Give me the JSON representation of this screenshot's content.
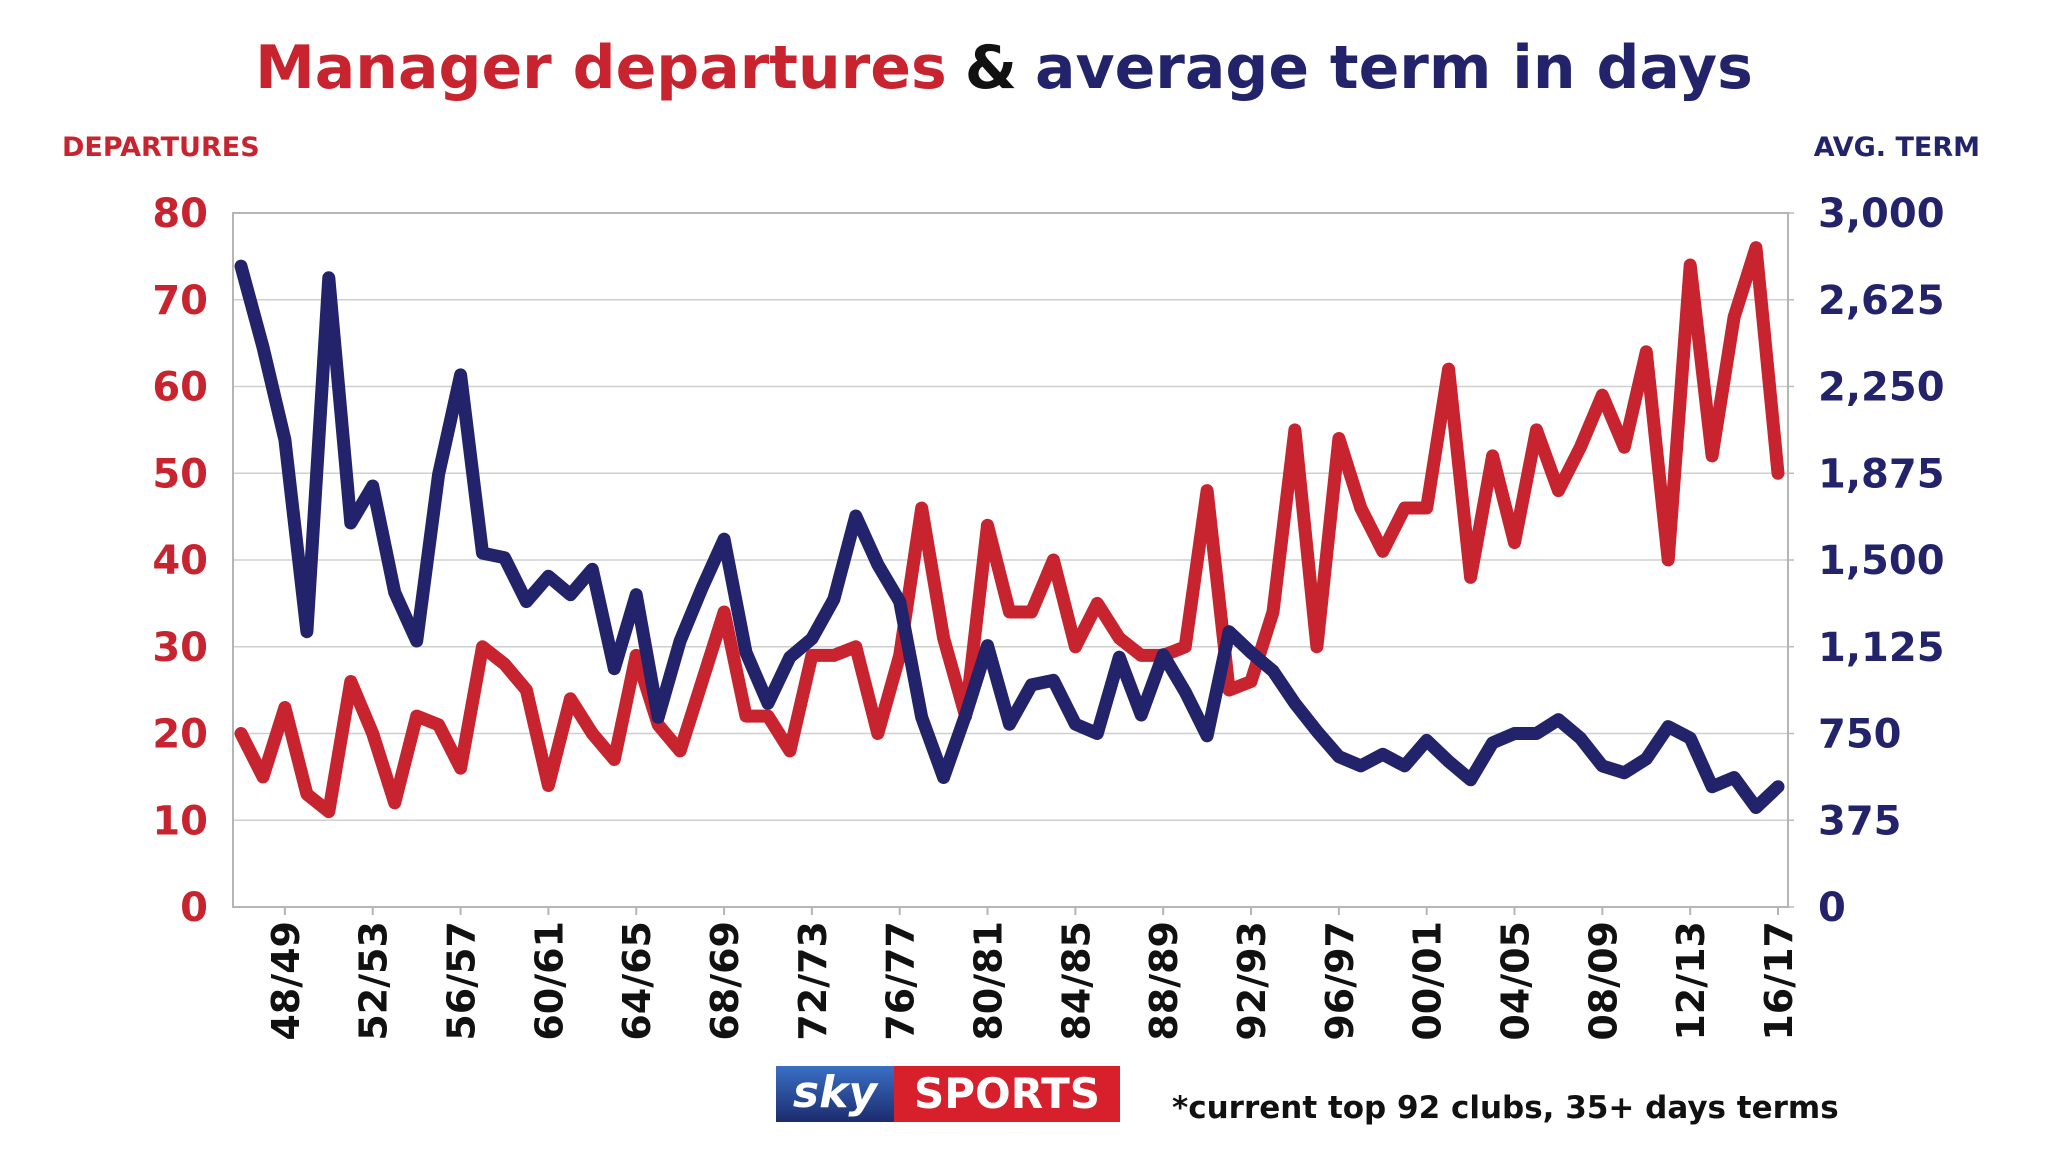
{
  "chart_data": {
    "type": "line",
    "title": [
      {
        "text": "Manager departures",
        "color": "#c8242f"
      },
      {
        "text": "&",
        "color": "#111111"
      },
      {
        "text": "average term in days",
        "color": "#23236b"
      }
    ],
    "ylabel": "DEPARTURES",
    "y2label": "AVG. TERM",
    "categories": [
      null,
      null,
      "48/49",
      null,
      null,
      null,
      "52/53",
      null,
      null,
      null,
      "56/57",
      null,
      null,
      null,
      "60/61",
      null,
      null,
      null,
      "64/65",
      null,
      null,
      null,
      "68/69",
      null,
      null,
      null,
      "72/73",
      null,
      null,
      null,
      "76/77",
      null,
      null,
      null,
      "80/81",
      null,
      null,
      null,
      "84/85",
      null,
      null,
      null,
      "88/89",
      null,
      null,
      null,
      "92/93",
      null,
      null,
      null,
      "96/97",
      null,
      null,
      null,
      "00/01",
      null,
      null,
      null,
      "04/05",
      null,
      null,
      null,
      "08/09",
      null,
      null,
      null,
      "12/13",
      null,
      null,
      null,
      "16/17"
    ],
    "series": [
      {
        "color": "#c8242f",
        "axis": "y",
        "values": [
          20,
          15,
          23,
          13,
          11,
          26,
          20,
          12,
          22,
          21,
          16,
          30,
          28,
          25,
          14,
          24,
          20,
          17,
          29,
          21,
          18,
          26,
          34,
          22,
          22,
          18,
          29,
          29,
          30,
          20,
          29,
          46,
          31,
          22,
          44,
          34,
          34,
          40,
          30,
          35,
          31,
          29,
          29,
          30,
          48,
          25,
          26,
          34,
          55,
          30,
          54,
          46,
          41,
          46,
          46,
          62,
          38,
          52,
          42,
          55,
          48,
          53,
          59,
          53,
          64,
          40,
          74,
          52,
          68,
          76,
          50
        ]
      },
      {
        "color": "#23236b",
        "axis": "y2",
        "values": [
          2770,
          2420,
          2020,
          1190,
          2720,
          1660,
          1820,
          1360,
          1150,
          1870,
          2300,
          1530,
          1510,
          1320,
          1430,
          1350,
          1460,
          1030,
          1350,
          820,
          1150,
          1380,
          1590,
          1100,
          880,
          1080,
          1160,
          1330,
          1690,
          1480,
          1320,
          820,
          560,
          830,
          1130,
          790,
          960,
          980,
          790,
          750,
          1080,
          830,
          1090,
          930,
          740,
          1190,
          1100,
          1020,
          880,
          760,
          650,
          610,
          660,
          610,
          720,
          630,
          550,
          710,
          750,
          750,
          810,
          730,
          610,
          580,
          640,
          780,
          730,
          520,
          560,
          430,
          520
        ]
      }
    ],
    "ylim": [
      0,
      80
    ],
    "yticks": [
      0,
      10,
      20,
      30,
      40,
      50,
      60,
      70,
      80
    ],
    "y2lim": [
      0,
      3000
    ],
    "y2ticks": [
      0,
      375,
      750,
      {
        "value": 1125,
        "label": "1,125"
      },
      {
        "value": 1500,
        "label": "1,500"
      },
      {
        "value": 1875,
        "label": "1,875"
      },
      {
        "value": 2250,
        "label": "2,250"
      },
      {
        "value": 2625,
        "label": "2,625"
      },
      {
        "value": 3000,
        "label": "3,000"
      }
    ],
    "grid": true,
    "logo": [
      "sky",
      "SPORTS"
    ],
    "footnote": "*current top 92 clubs, 35+ days terms"
  }
}
